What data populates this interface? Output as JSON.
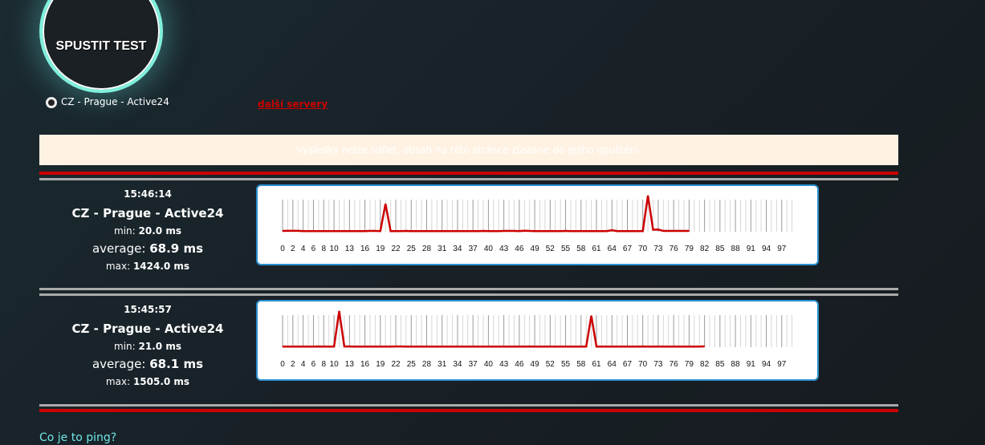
{
  "start_button": {
    "label": "SPUSTIT TEST"
  },
  "server": {
    "label": "CZ - Prague - Active24",
    "selected": true
  },
  "more_servers": "další servery",
  "banner": "Výsledky nelze sdílet, obsah na této stránce zůstane do jejího opuštění.",
  "colors": {
    "accent": "#7ff0dc",
    "line": "#cc0000",
    "link": "#cc0000",
    "chart_border": "#2b8fd0"
  },
  "results": [
    {
      "time": "15:46:14",
      "server": "CZ - Prague - Active24",
      "min_label": "min:",
      "min": "20.0 ms",
      "avg_label": "average:",
      "avg": "68.9 ms",
      "max_label": "max:",
      "max": "1424.0 ms"
    },
    {
      "time": "15:45:57",
      "server": "CZ - Prague - Active24",
      "min_label": "min:",
      "min": "21.0 ms",
      "avg_label": "average:",
      "avg": "68.1 ms",
      "max_label": "max:",
      "max": "1505.0 ms"
    }
  ],
  "chart_data": [
    {
      "type": "line",
      "xlim": [
        0,
        99
      ],
      "x_tick_labels": [
        "0",
        "2",
        "4",
        "6",
        "8",
        "10",
        "13",
        "16",
        "19",
        "22",
        "25",
        "28",
        "31",
        "34",
        "37",
        "40",
        "43",
        "46",
        "49",
        "52",
        "55",
        "58",
        "61",
        "64",
        "67",
        "70",
        "73",
        "76",
        "79",
        "82",
        "85",
        "88",
        "91",
        "94",
        "97"
      ],
      "grid": true,
      "series": [
        {
          "color": "#cc0000",
          "values": [
            30,
            35,
            35,
            35,
            25,
            25,
            25,
            25,
            25,
            25,
            25,
            25,
            25,
            25,
            25,
            25,
            25,
            30,
            30,
            25,
            1100,
            25,
            25,
            25,
            30,
            25,
            25,
            25,
            25,
            25,
            25,
            25,
            25,
            25,
            25,
            25,
            25,
            25,
            25,
            30,
            25,
            25,
            25,
            30,
            30,
            30,
            25,
            40,
            30,
            25,
            25,
            25,
            25,
            25,
            25,
            30,
            25,
            25,
            25,
            25,
            25,
            25,
            25,
            25,
            60,
            25,
            25,
            25,
            25,
            25,
            25,
            1424,
            80,
            85,
            30,
            30,
            30,
            30,
            30,
            30
          ]
        }
      ]
    },
    {
      "type": "line",
      "xlim": [
        0,
        99
      ],
      "x_tick_labels": [
        "0",
        "2",
        "4",
        "6",
        "8",
        "10",
        "13",
        "16",
        "19",
        "22",
        "25",
        "28",
        "31",
        "34",
        "37",
        "40",
        "43",
        "46",
        "49",
        "52",
        "55",
        "58",
        "61",
        "64",
        "67",
        "70",
        "73",
        "76",
        "79",
        "82",
        "85",
        "88",
        "91",
        "94",
        "97"
      ],
      "grid": true,
      "series": [
        {
          "color": "#cc0000",
          "values": [
            25,
            25,
            25,
            25,
            25,
            25,
            25,
            30,
            25,
            25,
            25,
            1505,
            30,
            30,
            25,
            25,
            25,
            25,
            25,
            25,
            25,
            25,
            30,
            30,
            25,
            25,
            25,
            25,
            25,
            25,
            25,
            25,
            25,
            25,
            25,
            25,
            25,
            25,
            25,
            25,
            25,
            25,
            25,
            25,
            25,
            25,
            25,
            25,
            30,
            25,
            25,
            25,
            25,
            25,
            25,
            25,
            25,
            25,
            25,
            25,
            1310,
            25,
            25,
            25,
            25,
            25,
            25,
            25,
            25,
            25,
            30,
            25,
            25,
            25,
            25,
            25,
            25,
            25,
            25,
            25,
            25,
            25,
            35
          ]
        }
      ]
    }
  ],
  "help_link": "Co je to ping?"
}
